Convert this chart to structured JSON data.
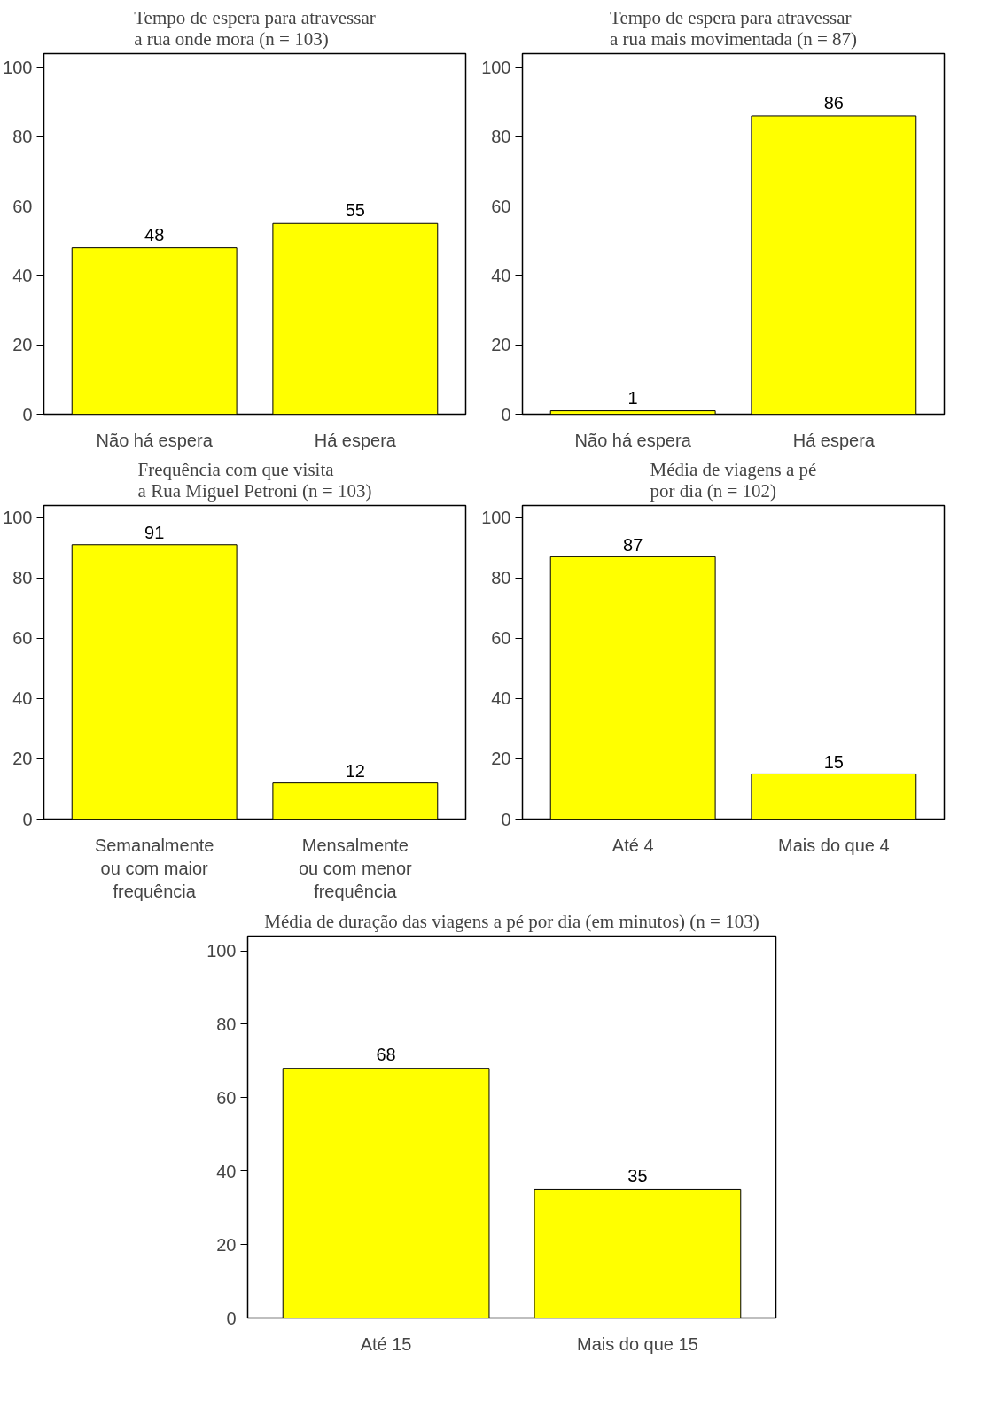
{
  "chart_data": [
    {
      "type": "bar",
      "title": "Tempo de espera para atravessar\na rua onde mora (n = 103)",
      "categories": [
        "Não há espera",
        "Há espera"
      ],
      "values": [
        48,
        55
      ],
      "color": "#ffff00",
      "ylim": [
        0,
        104
      ],
      "yticks": [
        0,
        20,
        40,
        60,
        80,
        100
      ],
      "data_labels": true,
      "grid": false
    },
    {
      "type": "bar",
      "title": "Tempo de espera para atravessar\na rua mais movimentada (n = 87)",
      "categories": [
        "Não há espera",
        "Há espera"
      ],
      "values": [
        1,
        86
      ],
      "color": "#ffff00",
      "ylim": [
        0,
        104
      ],
      "yticks": [
        0,
        20,
        40,
        60,
        80,
        100
      ],
      "data_labels": true,
      "grid": false
    },
    {
      "type": "bar",
      "title": "Frequência com que visita\na Rua Miguel Petroni (n = 103)",
      "categories": [
        "Semanalmente\nou com maior\nfrequência",
        "Mensalmente\nou com menor\nfrequência"
      ],
      "values": [
        91,
        12
      ],
      "color": "#ffff00",
      "ylim": [
        0,
        104
      ],
      "yticks": [
        0,
        20,
        40,
        60,
        80,
        100
      ],
      "data_labels": true,
      "grid": false
    },
    {
      "type": "bar",
      "title": "Média de viagens a pé\npor dia (n = 102)",
      "categories": [
        "Até 4",
        "Mais do que 4"
      ],
      "values": [
        87,
        15
      ],
      "color": "#ffff00",
      "ylim": [
        0,
        104
      ],
      "yticks": [
        0,
        20,
        40,
        60,
        80,
        100
      ],
      "data_labels": true,
      "grid": false
    },
    {
      "type": "bar",
      "title": "Média de duração das viagens a pé por dia (em minutos) (n = 103)",
      "categories": [
        "Até 15",
        "Mais do que 15"
      ],
      "values": [
        68,
        35
      ],
      "color": "#ffff00",
      "ylim": [
        0,
        104
      ],
      "yticks": [
        0,
        20,
        40,
        60,
        80,
        100
      ],
      "data_labels": true,
      "grid": false
    }
  ]
}
